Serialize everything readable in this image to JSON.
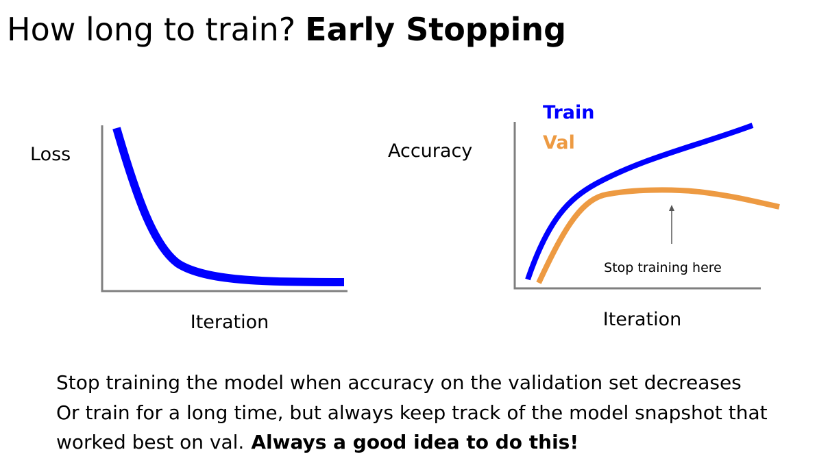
{
  "title": {
    "plain": "How long to train?",
    "bold": "Early Stopping"
  },
  "left_plot": {
    "y_label": "Loss",
    "x_label": "Iteration"
  },
  "right_plot": {
    "y_label": "Accuracy",
    "x_label": "Iteration",
    "legend": [
      "Train",
      "Val"
    ],
    "annotation": "Stop training here"
  },
  "body": {
    "lines": [
      "Stop training the model when accuracy on the validation set decreases",
      "Or train for a long time, but always keep track of the model snapshot that",
      "worked best on val."
    ],
    "bold": "Always a good idea to do this!"
  }
}
